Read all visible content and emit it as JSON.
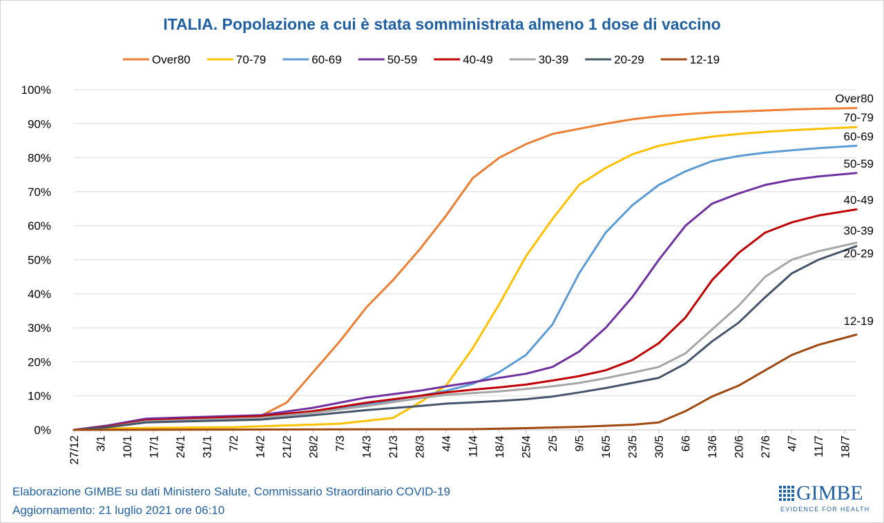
{
  "footer": {
    "source": "Elaborazione GIMBE su dati Ministero Salute, Commissario Straordinario COVID-19",
    "updated": "Aggiornamento: 21 luglio 2021 ore 06:10"
  },
  "logo": {
    "wordmark": "GIMBE",
    "tagline": "EVIDENCE FOR HEALTH",
    "color": "#1f5fa3"
  },
  "chart_data": {
    "type": "line",
    "title": "ITALIA. Popolazione a cui è stata somministrata almeno 1 dose di vaccino",
    "xlabel": "",
    "ylabel": "",
    "grid": "horizontal",
    "legend_position": "top",
    "x_range": [
      "2020-12-27",
      "2021-07-21"
    ],
    "x_ticks": [
      {
        "date": "2020-12-27",
        "label": "27/12"
      },
      {
        "date": "2021-01-03",
        "label": "3/1"
      },
      {
        "date": "2021-01-10",
        "label": "10/1"
      },
      {
        "date": "2021-01-17",
        "label": "17/1"
      },
      {
        "date": "2021-01-24",
        "label": "24/1"
      },
      {
        "date": "2021-01-31",
        "label": "31/1"
      },
      {
        "date": "2021-02-07",
        "label": "7/2"
      },
      {
        "date": "2021-02-14",
        "label": "14/2"
      },
      {
        "date": "2021-02-21",
        "label": "21/2"
      },
      {
        "date": "2021-02-28",
        "label": "28/2"
      },
      {
        "date": "2021-03-07",
        "label": "7/3"
      },
      {
        "date": "2021-03-14",
        "label": "14/3"
      },
      {
        "date": "2021-03-21",
        "label": "21/3"
      },
      {
        "date": "2021-03-28",
        "label": "28/3"
      },
      {
        "date": "2021-04-04",
        "label": "4/4"
      },
      {
        "date": "2021-04-11",
        "label": "11/4"
      },
      {
        "date": "2021-04-18",
        "label": "18/4"
      },
      {
        "date": "2021-04-25",
        "label": "25/4"
      },
      {
        "date": "2021-05-02",
        "label": "2/5"
      },
      {
        "date": "2021-05-09",
        "label": "9/5"
      },
      {
        "date": "2021-05-16",
        "label": "16/5"
      },
      {
        "date": "2021-05-23",
        "label": "23/5"
      },
      {
        "date": "2021-05-30",
        "label": "30/5"
      },
      {
        "date": "2021-06-06",
        "label": "6/6"
      },
      {
        "date": "2021-06-13",
        "label": "13/6"
      },
      {
        "date": "2021-06-20",
        "label": "20/6"
      },
      {
        "date": "2021-06-27",
        "label": "27/6"
      },
      {
        "date": "2021-07-04",
        "label": "4/7"
      },
      {
        "date": "2021-07-11",
        "label": "11/7"
      },
      {
        "date": "2021-07-18",
        "label": "18/7"
      }
    ],
    "y_unit": "%",
    "ylim": [
      0,
      100
    ],
    "y_ticks": [
      {
        "value": 0,
        "label": "0%"
      },
      {
        "value": 10,
        "label": "10%"
      },
      {
        "value": 20,
        "label": "20%"
      },
      {
        "value": 30,
        "label": "30%"
      },
      {
        "value": 40,
        "label": "40%"
      },
      {
        "value": 50,
        "label": "50%"
      },
      {
        "value": 60,
        "label": "60%"
      },
      {
        "value": 70,
        "label": "70%"
      },
      {
        "value": 80,
        "label": "80%"
      },
      {
        "value": 90,
        "label": "90%"
      },
      {
        "value": 100,
        "label": "100%"
      }
    ],
    "series": [
      {
        "name": "Over80",
        "color": "#ed7d31",
        "end_label": "Over80",
        "points": [
          [
            "2020-12-27",
            0
          ],
          [
            "2021-01-05",
            1
          ],
          [
            "2021-01-15",
            3
          ],
          [
            "2021-02-14",
            4
          ],
          [
            "2021-02-21",
            8
          ],
          [
            "2021-02-28",
            17
          ],
          [
            "2021-03-07",
            26
          ],
          [
            "2021-03-14",
            36
          ],
          [
            "2021-03-21",
            44
          ],
          [
            "2021-03-28",
            53
          ],
          [
            "2021-04-04",
            63
          ],
          [
            "2021-04-11",
            74
          ],
          [
            "2021-04-18",
            80
          ],
          [
            "2021-04-25",
            84
          ],
          [
            "2021-05-02",
            87
          ],
          [
            "2021-05-09",
            88.5
          ],
          [
            "2021-05-16",
            90
          ],
          [
            "2021-05-23",
            91.3
          ],
          [
            "2021-05-30",
            92.2
          ],
          [
            "2021-06-06",
            92.8
          ],
          [
            "2021-06-13",
            93.3
          ],
          [
            "2021-06-20",
            93.6
          ],
          [
            "2021-06-27",
            93.9
          ],
          [
            "2021-07-04",
            94.2
          ],
          [
            "2021-07-11",
            94.4
          ],
          [
            "2021-07-21",
            94.6
          ]
        ]
      },
      {
        "name": "70-79",
        "color": "#ffc000",
        "end_label": "70-79",
        "points": [
          [
            "2020-12-27",
            0
          ],
          [
            "2021-01-10",
            0.5
          ],
          [
            "2021-02-07",
            0.8
          ],
          [
            "2021-02-21",
            1.3
          ],
          [
            "2021-03-07",
            1.8
          ],
          [
            "2021-03-21",
            3.5
          ],
          [
            "2021-03-28",
            8
          ],
          [
            "2021-04-04",
            13
          ],
          [
            "2021-04-11",
            24
          ],
          [
            "2021-04-18",
            37
          ],
          [
            "2021-04-25",
            51
          ],
          [
            "2021-05-02",
            62
          ],
          [
            "2021-05-09",
            72
          ],
          [
            "2021-05-16",
            77
          ],
          [
            "2021-05-23",
            81
          ],
          [
            "2021-05-30",
            83.5
          ],
          [
            "2021-06-06",
            85
          ],
          [
            "2021-06-13",
            86.2
          ],
          [
            "2021-06-20",
            87
          ],
          [
            "2021-06-27",
            87.6
          ],
          [
            "2021-07-04",
            88.1
          ],
          [
            "2021-07-11",
            88.5
          ],
          [
            "2021-07-21",
            89
          ]
        ]
      },
      {
        "name": "60-69",
        "color": "#5b9bd5",
        "end_label": "60-69",
        "points": [
          [
            "2020-12-27",
            0
          ],
          [
            "2021-01-05",
            1
          ],
          [
            "2021-01-15",
            3
          ],
          [
            "2021-02-14",
            4
          ],
          [
            "2021-02-28",
            5.5
          ],
          [
            "2021-03-14",
            7.5
          ],
          [
            "2021-03-28",
            10
          ],
          [
            "2021-04-04",
            11.5
          ],
          [
            "2021-04-11",
            13.5
          ],
          [
            "2021-04-18",
            17
          ],
          [
            "2021-04-25",
            22
          ],
          [
            "2021-05-02",
            31
          ],
          [
            "2021-05-09",
            46
          ],
          [
            "2021-05-16",
            58
          ],
          [
            "2021-05-23",
            66
          ],
          [
            "2021-05-30",
            72
          ],
          [
            "2021-06-06",
            76
          ],
          [
            "2021-06-13",
            79
          ],
          [
            "2021-06-20",
            80.5
          ],
          [
            "2021-06-27",
            81.5
          ],
          [
            "2021-07-04",
            82.2
          ],
          [
            "2021-07-11",
            82.8
          ],
          [
            "2021-07-21",
            83.5
          ]
        ]
      },
      {
        "name": "50-59",
        "color": "#7030a0",
        "end_label": "50-59",
        "points": [
          [
            "2020-12-27",
            0
          ],
          [
            "2021-01-05",
            1.3
          ],
          [
            "2021-01-15",
            3.3
          ],
          [
            "2021-02-14",
            4.3
          ],
          [
            "2021-02-28",
            6.5
          ],
          [
            "2021-03-14",
            9.5
          ],
          [
            "2021-03-28",
            11.5
          ],
          [
            "2021-04-04",
            12.8
          ],
          [
            "2021-04-11",
            14
          ],
          [
            "2021-04-18",
            15.3
          ],
          [
            "2021-04-25",
            16.5
          ],
          [
            "2021-05-02",
            18.5
          ],
          [
            "2021-05-09",
            23
          ],
          [
            "2021-05-16",
            30
          ],
          [
            "2021-05-23",
            39
          ],
          [
            "2021-05-30",
            50
          ],
          [
            "2021-06-06",
            60
          ],
          [
            "2021-06-13",
            66.5
          ],
          [
            "2021-06-20",
            69.5
          ],
          [
            "2021-06-27",
            72
          ],
          [
            "2021-07-04",
            73.5
          ],
          [
            "2021-07-11",
            74.5
          ],
          [
            "2021-07-21",
            75.5
          ]
        ]
      },
      {
        "name": "40-49",
        "color": "#c00000",
        "end_label": "40-49",
        "points": [
          [
            "2020-12-27",
            0
          ],
          [
            "2021-01-05",
            1
          ],
          [
            "2021-01-15",
            2.8
          ],
          [
            "2021-02-14",
            4
          ],
          [
            "2021-02-28",
            5.5
          ],
          [
            "2021-03-14",
            8
          ],
          [
            "2021-03-28",
            10
          ],
          [
            "2021-04-04",
            11
          ],
          [
            "2021-04-11",
            11.8
          ],
          [
            "2021-04-18",
            12.5
          ],
          [
            "2021-04-25",
            13.3
          ],
          [
            "2021-05-02",
            14.5
          ],
          [
            "2021-05-09",
            15.8
          ],
          [
            "2021-05-16",
            17.5
          ],
          [
            "2021-05-23",
            20.5
          ],
          [
            "2021-05-30",
            25.5
          ],
          [
            "2021-06-06",
            33
          ],
          [
            "2021-06-13",
            44
          ],
          [
            "2021-06-20",
            52
          ],
          [
            "2021-06-27",
            58
          ],
          [
            "2021-07-04",
            61
          ],
          [
            "2021-07-11",
            63
          ],
          [
            "2021-07-21",
            64.8
          ]
        ]
      },
      {
        "name": "30-39",
        "color": "#a5a5a5",
        "end_label": "30-39",
        "points": [
          [
            "2020-12-27",
            0
          ],
          [
            "2021-01-05",
            0.8
          ],
          [
            "2021-01-15",
            2.5
          ],
          [
            "2021-02-14",
            3.5
          ],
          [
            "2021-02-28",
            5
          ],
          [
            "2021-03-14",
            7
          ],
          [
            "2021-03-28",
            9.3
          ],
          [
            "2021-04-04",
            10.3
          ],
          [
            "2021-04-11",
            10.8
          ],
          [
            "2021-04-18",
            11.3
          ],
          [
            "2021-04-25",
            12
          ],
          [
            "2021-05-02",
            12.8
          ],
          [
            "2021-05-09",
            13.8
          ],
          [
            "2021-05-16",
            15.2
          ],
          [
            "2021-05-23",
            16.8
          ],
          [
            "2021-05-30",
            18.5
          ],
          [
            "2021-06-06",
            22.5
          ],
          [
            "2021-06-13",
            29.5
          ],
          [
            "2021-06-20",
            36.5
          ],
          [
            "2021-06-27",
            45
          ],
          [
            "2021-07-04",
            50
          ],
          [
            "2021-07-11",
            52.5
          ],
          [
            "2021-07-21",
            55
          ]
        ]
      },
      {
        "name": "20-29",
        "color": "#44546a",
        "end_label": "20-29",
        "points": [
          [
            "2020-12-27",
            0
          ],
          [
            "2021-01-05",
            0.8
          ],
          [
            "2021-01-15",
            2.2
          ],
          [
            "2021-02-14",
            3
          ],
          [
            "2021-02-28",
            4.3
          ],
          [
            "2021-03-14",
            5.8
          ],
          [
            "2021-03-28",
            7
          ],
          [
            "2021-04-04",
            7.7
          ],
          [
            "2021-04-11",
            8.1
          ],
          [
            "2021-04-18",
            8.5
          ],
          [
            "2021-04-25",
            9
          ],
          [
            "2021-05-02",
            9.8
          ],
          [
            "2021-05-09",
            11
          ],
          [
            "2021-05-16",
            12.3
          ],
          [
            "2021-05-23",
            13.8
          ],
          [
            "2021-05-30",
            15.3
          ],
          [
            "2021-06-06",
            19.5
          ],
          [
            "2021-06-13",
            26
          ],
          [
            "2021-06-20",
            31.5
          ],
          [
            "2021-06-27",
            39
          ],
          [
            "2021-07-04",
            46
          ],
          [
            "2021-07-11",
            50
          ],
          [
            "2021-07-21",
            54
          ]
        ]
      },
      {
        "name": "12-19",
        "color": "#9e480e",
        "end_label": "12-19",
        "points": [
          [
            "2020-12-27",
            0
          ],
          [
            "2021-04-11",
            0.2
          ],
          [
            "2021-04-25",
            0.5
          ],
          [
            "2021-05-09",
            0.9
          ],
          [
            "2021-05-23",
            1.5
          ],
          [
            "2021-05-30",
            2.2
          ],
          [
            "2021-06-06",
            5.5
          ],
          [
            "2021-06-13",
            9.8
          ],
          [
            "2021-06-20",
            13
          ],
          [
            "2021-06-27",
            17.5
          ],
          [
            "2021-07-04",
            22
          ],
          [
            "2021-07-11",
            25
          ],
          [
            "2021-07-21",
            28
          ]
        ]
      }
    ]
  }
}
